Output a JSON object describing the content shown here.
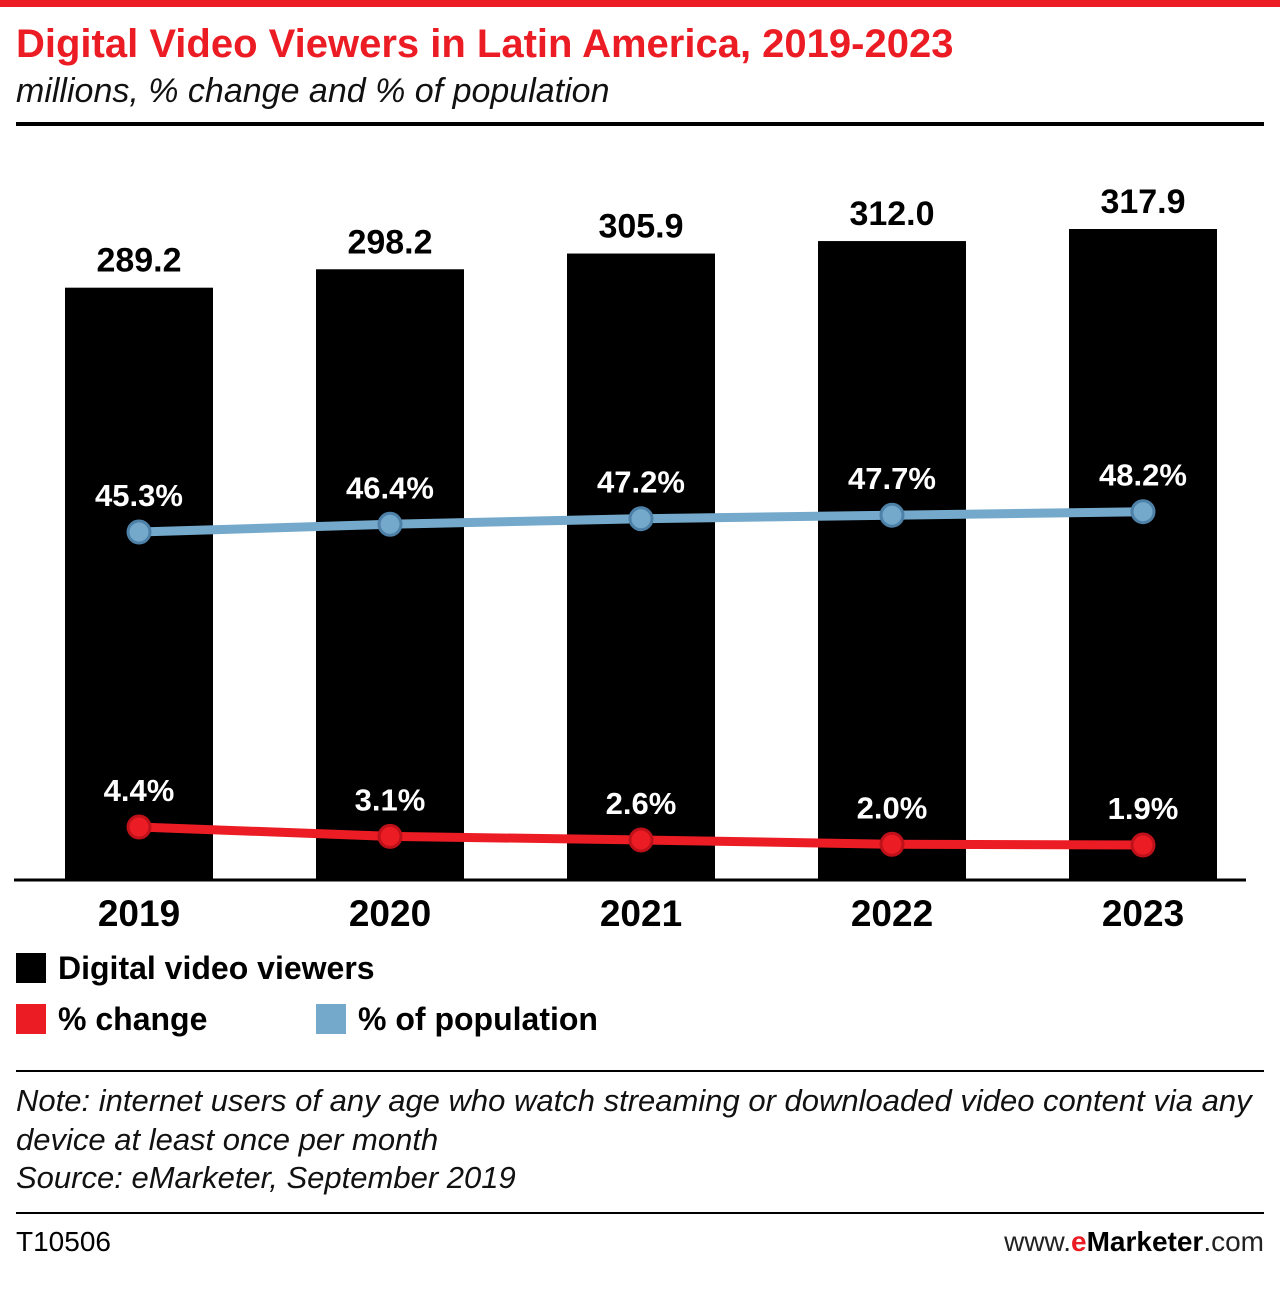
{
  "colors": {
    "red": "#EC1C24",
    "blue": "#74A9CB",
    "black": "#000000"
  },
  "header": {
    "title": "Digital Video Viewers in Latin America, 2019-2023",
    "subtitle": "millions, % change and % of population"
  },
  "chart_data": {
    "type": "bar",
    "categories": [
      "2019",
      "2020",
      "2021",
      "2022",
      "2023"
    ],
    "series": [
      {
        "name": "Digital video viewers",
        "type": "bar",
        "unit": "millions",
        "color": "#000000",
        "values": [
          289.2,
          298.2,
          305.9,
          312.0,
          317.9
        ],
        "labels": [
          "289.2",
          "298.2",
          "305.9",
          "312.0",
          "317.9"
        ]
      },
      {
        "name": "% change",
        "type": "line",
        "color": "#EC1C24",
        "point_stroke": "#BE111A",
        "values": [
          4.4,
          3.1,
          2.6,
          2.0,
          1.9
        ],
        "labels": [
          "4.4%",
          "3.1%",
          "2.6%",
          "2.0%",
          "1.9%"
        ]
      },
      {
        "name": "% of population",
        "type": "line",
        "color": "#74A9CB",
        "point_stroke": "#4E81A8",
        "values": [
          45.3,
          46.4,
          47.2,
          47.7,
          48.2
        ],
        "labels": [
          "45.3%",
          "46.4%",
          "47.2%",
          "47.7%",
          "48.2%"
        ]
      }
    ],
    "title": "Digital Video Viewers in Latin America, 2019-2023",
    "subtitle": "millions, % change and % of population",
    "xlabel": "",
    "ylabel": "",
    "ylim_bar": [
      0,
      330
    ],
    "grid": false,
    "legend_position": "bottom"
  },
  "legend": {
    "items": [
      {
        "label": "Digital video viewers",
        "color": "#000000"
      },
      {
        "label": "% change",
        "color": "#EC1C24"
      },
      {
        "label": "% of population",
        "color": "#74A9CB"
      }
    ]
  },
  "note": {
    "note": "Note: internet users of any age who watch streaming or downloaded video content via any device at least once per month",
    "source": "Source: eMarketer, September 2019"
  },
  "footer": {
    "chart_id": "T10506",
    "website": {
      "prefix": "www.",
      "e": "e",
      "rest": "Marketer",
      "suffix": ".com"
    }
  }
}
